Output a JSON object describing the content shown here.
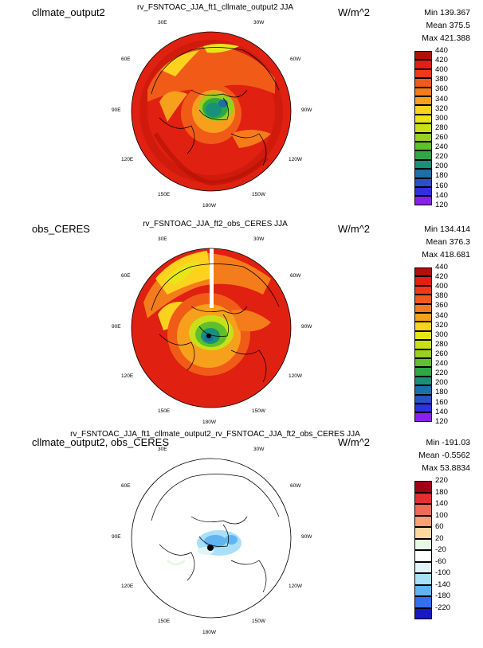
{
  "panels": [
    {
      "left_title": "cllmate_output2",
      "center_title": "rv_FSNTOAC_JJA_ft1_cllmate_output2 JJA",
      "units": "W/m^2",
      "stats": {
        "min": "Min 139.367",
        "mean": "Mean 375.5",
        "max": "Max 421.388"
      },
      "colorbar": {
        "labels": [
          "440",
          "420",
          "400",
          "380",
          "360",
          "340",
          "320",
          "300",
          "280",
          "260",
          "240",
          "220",
          "200",
          "180",
          "160",
          "140",
          "120"
        ],
        "colors": [
          "#b01005",
          "#e02010",
          "#f03a14",
          "#f05c18",
          "#f57c1a",
          "#f7a01c",
          "#fcd21e",
          "#e8e61a",
          "#c8e01c",
          "#98d020",
          "#5ec02a",
          "#2ea844",
          "#18907a",
          "#1a70a8",
          "#2850c8",
          "#3030e0",
          "#8820f0"
        ]
      },
      "longitude_labels": [
        "30E",
        "30W",
        "60E",
        "60W",
        "90E",
        "90W",
        "120E",
        "120W",
        "150E",
        "150W",
        "180W"
      ]
    },
    {
      "left_title": "obs_CERES",
      "center_title": "rv_FSNTOAC_JJA_ft2_obs_CERES JJA",
      "units": "W/m^2",
      "stats": {
        "min": "Min 134.414",
        "mean": "Mean 376.3",
        "max": "Max 418.681"
      },
      "colorbar": {
        "labels": [
          "440",
          "420",
          "400",
          "380",
          "360",
          "340",
          "320",
          "300",
          "280",
          "260",
          "240",
          "220",
          "200",
          "180",
          "160",
          "140",
          "120"
        ],
        "colors": [
          "#b01005",
          "#e02010",
          "#f03a14",
          "#f05c18",
          "#f57c1a",
          "#f7a01c",
          "#fcd21e",
          "#e8e61a",
          "#c8e01c",
          "#98d020",
          "#5ec02a",
          "#2ea844",
          "#18907a",
          "#1a70a8",
          "#2850c8",
          "#3030e0",
          "#8820f0"
        ]
      },
      "longitude_labels": [
        "30E",
        "30W",
        "60E",
        "60W",
        "90E",
        "90W",
        "120E",
        "120W",
        "150E",
        "150W",
        "180W"
      ]
    },
    {
      "left_title": "cllmate_output2, obs_CERES",
      "center_title": "rv_FSNTOAC_JJA_ft1_cllmate_output2_rv_FSNTOAC_JJA_ft2_obs_CERES JJA",
      "units": "W/m^2",
      "stats": {
        "min": "Min -191.03",
        "mean": "Mean -0.5562",
        "max": "Max 53.8834"
      },
      "colorbar": {
        "labels": [
          "220",
          "180",
          "140",
          "100",
          "60",
          "20",
          "-20",
          "-60",
          "-100",
          "-140",
          "-180",
          "-220"
        ],
        "colors": [
          "#a00018",
          "#e03030",
          "#f06a58",
          "#f8a078",
          "#fcd8a0",
          "#e8f8e8",
          "#ffffff",
          "#e0f4f8",
          "#a8e0f8",
          "#60b4f0",
          "#3070f0",
          "#1818c8"
        ]
      },
      "longitude_labels": [
        "30E",
        "30W",
        "60E",
        "60W",
        "90E",
        "90W",
        "120E",
        "120W",
        "150E",
        "150W",
        "180W"
      ]
    }
  ]
}
